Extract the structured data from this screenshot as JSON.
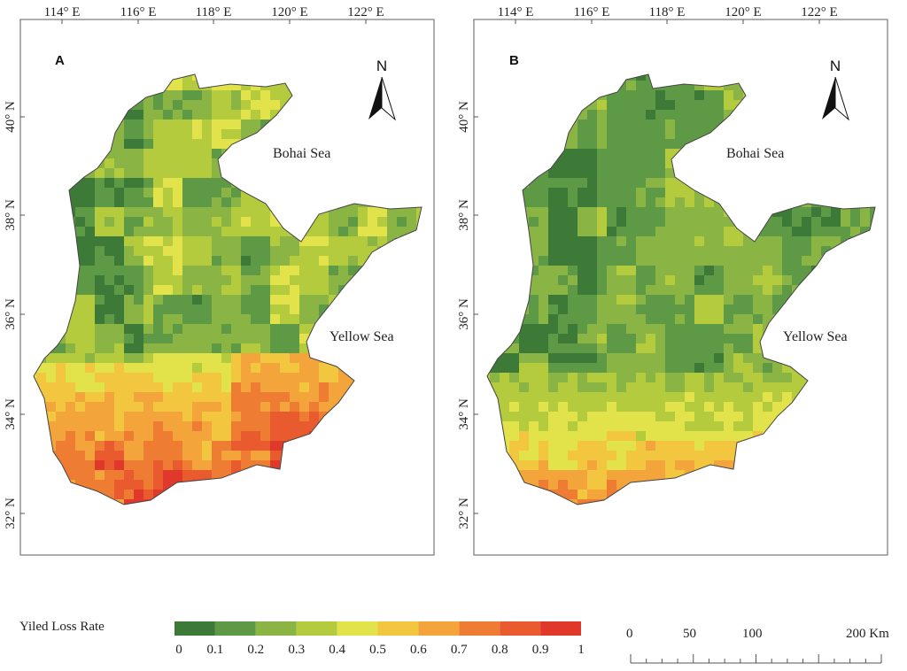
{
  "panels": [
    {
      "letter": "A",
      "intensity": "high",
      "seas": {
        "bohai": "Bohai Sea",
        "yellow": "Yellow Sea"
      }
    },
    {
      "letter": "B",
      "intensity": "low",
      "seas": {
        "bohai": "Bohai Sea",
        "yellow": "Yellow Sea"
      }
    }
  ],
  "north_label": "N",
  "lon_labels": [
    "114° E",
    "116° E",
    "118° E",
    "120° E",
    "122° E"
  ],
  "lat_labels": [
    "40° N",
    "38° N",
    "36° N",
    "34° N",
    "32° N"
  ],
  "legend": {
    "title": "Yiled Loss Rate",
    "ticks": [
      "0",
      "0.1",
      "0.2",
      "0.3",
      "0.4",
      "0.5",
      "0.6",
      "0.7",
      "0.8",
      "0.9",
      "1"
    ],
    "colors": [
      "#3d7a37",
      "#5e9a45",
      "#8ab443",
      "#b3cb3c",
      "#e2e24a",
      "#f2c63e",
      "#f3a43a",
      "#ef7c33",
      "#e95a2e",
      "#e0382b"
    ]
  },
  "scale_bar": {
    "labels": [
      "0",
      "50",
      "100",
      "200 Km"
    ]
  }
}
